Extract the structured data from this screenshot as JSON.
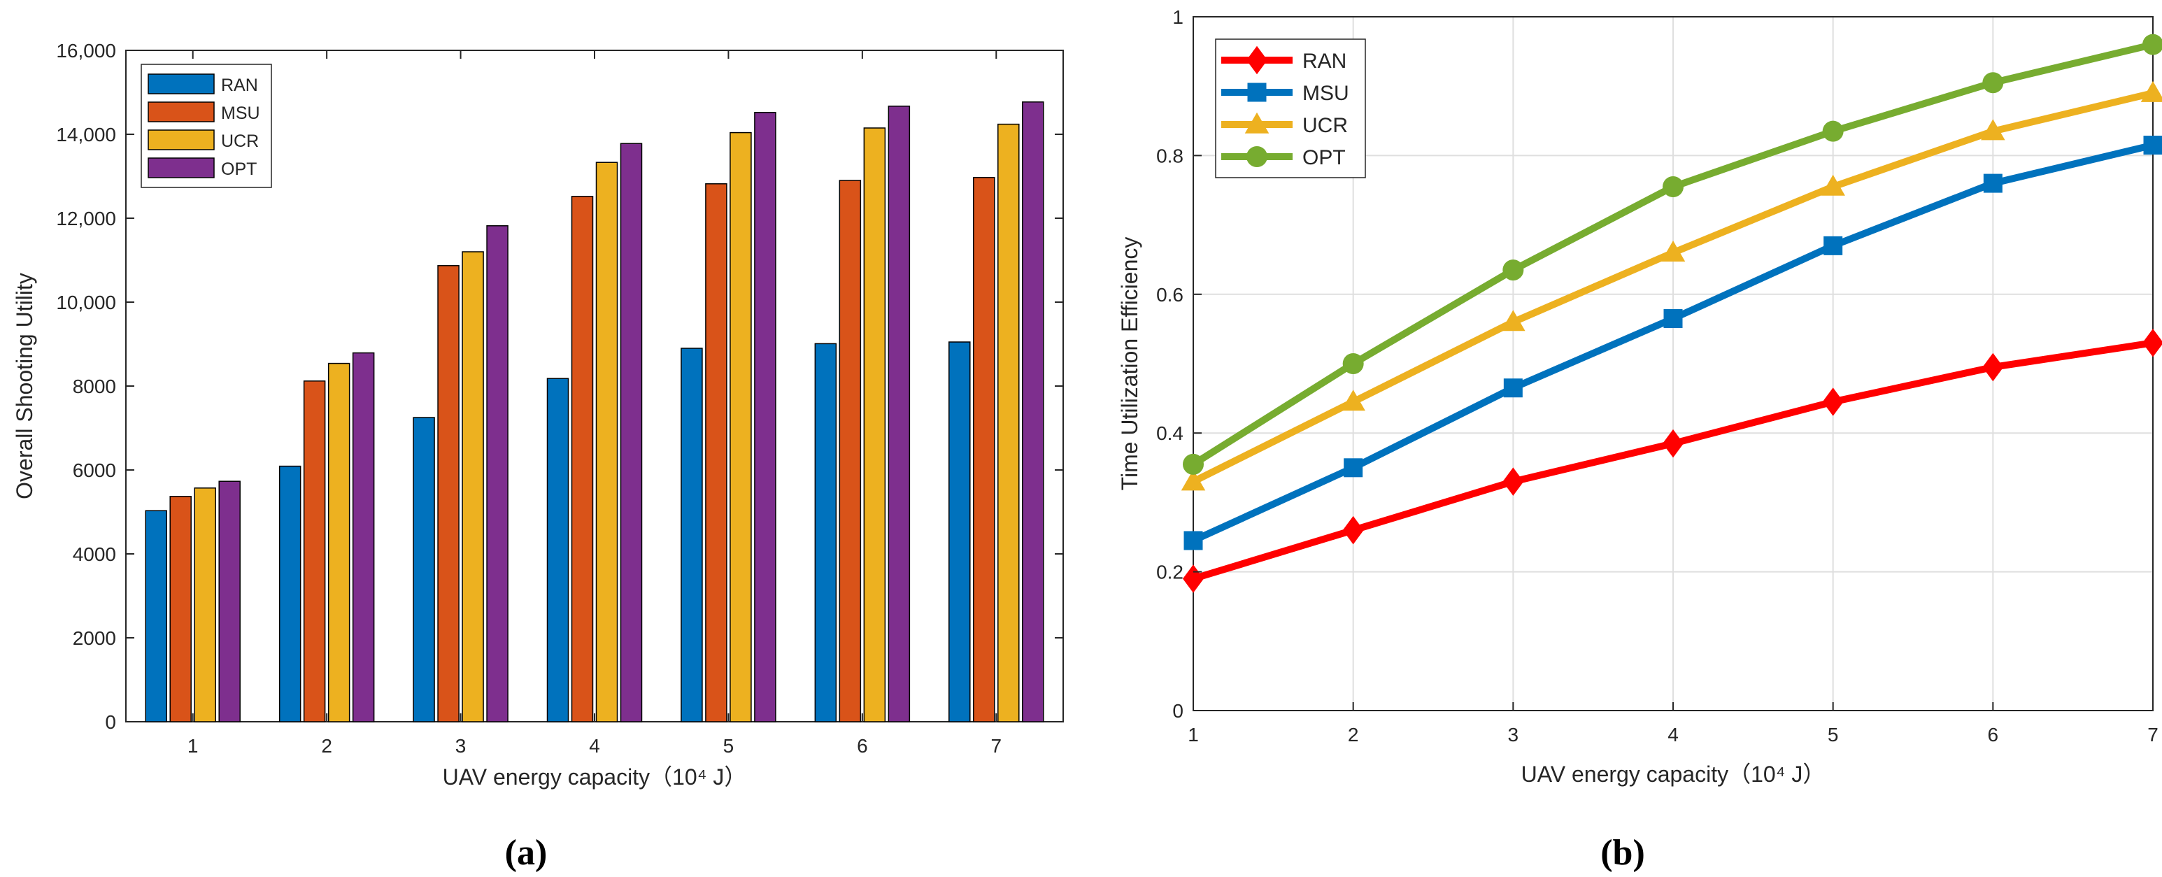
{
  "chart_data": [
    {
      "type": "bar",
      "panel": "a",
      "caption": "(a)",
      "title": "",
      "xlabel": "UAV energy capacity（10⁴ J）",
      "ylabel": "Overall Shooting Utility",
      "categories": [
        "1",
        "2",
        "3",
        "4",
        "5",
        "6",
        "7"
      ],
      "ylim": [
        0,
        16000
      ],
      "yticks": [
        0,
        2000,
        4000,
        6000,
        8000,
        10000,
        12000,
        14000,
        16000
      ],
      "ytick_labels": [
        "0",
        "2000",
        "4000",
        "6000",
        "8000",
        "10,000",
        "12,000",
        "14,000",
        "16,000"
      ],
      "legend_position": "top-left",
      "series": [
        {
          "name": "RAN",
          "color": "#0072BD",
          "values": [
            5030,
            6090,
            7250,
            8180,
            8900,
            9010,
            9050
          ]
        },
        {
          "name": "MSU",
          "color": "#D95319",
          "values": [
            5370,
            8120,
            10870,
            12520,
            12820,
            12900,
            12970
          ]
        },
        {
          "name": "UCR",
          "color": "#EDB120",
          "values": [
            5570,
            8540,
            11200,
            13330,
            14040,
            14150,
            14240
          ]
        },
        {
          "name": "OPT",
          "color": "#7E2F8E",
          "values": [
            5730,
            8790,
            11820,
            13780,
            14520,
            14670,
            14770
          ]
        }
      ]
    },
    {
      "type": "line",
      "panel": "b",
      "caption": "(b)",
      "title": "",
      "xlabel": "UAV energy capacity（10⁴ J）",
      "ylabel": "Time Utilization Efficiency",
      "x": [
        1,
        2,
        3,
        4,
        5,
        6,
        7
      ],
      "xlim": [
        1,
        7
      ],
      "ylim": [
        0,
        1
      ],
      "yticks": [
        0,
        0.2,
        0.4,
        0.6,
        0.8,
        1
      ],
      "ytick_labels": [
        "0",
        "0.2",
        "0.4",
        "0.6",
        "0.8",
        "1"
      ],
      "grid": true,
      "legend_position": "top-left",
      "series": [
        {
          "name": "RAN",
          "color": "#FF0000",
          "marker": "diamond",
          "values": [
            0.19,
            0.26,
            0.33,
            0.385,
            0.445,
            0.495,
            0.53
          ]
        },
        {
          "name": "MSU",
          "color": "#0072BD",
          "marker": "square",
          "values": [
            0.245,
            0.35,
            0.465,
            0.565,
            0.67,
            0.76,
            0.815
          ]
        },
        {
          "name": "UCR",
          "color": "#EDB120",
          "marker": "triangle",
          "values": [
            0.33,
            0.445,
            0.56,
            0.66,
            0.755,
            0.835,
            0.89
          ]
        },
        {
          "name": "OPT",
          "color": "#77AC30",
          "marker": "circle",
          "values": [
            0.355,
            0.5,
            0.635,
            0.755,
            0.835,
            0.905,
            0.96
          ]
        }
      ]
    }
  ]
}
